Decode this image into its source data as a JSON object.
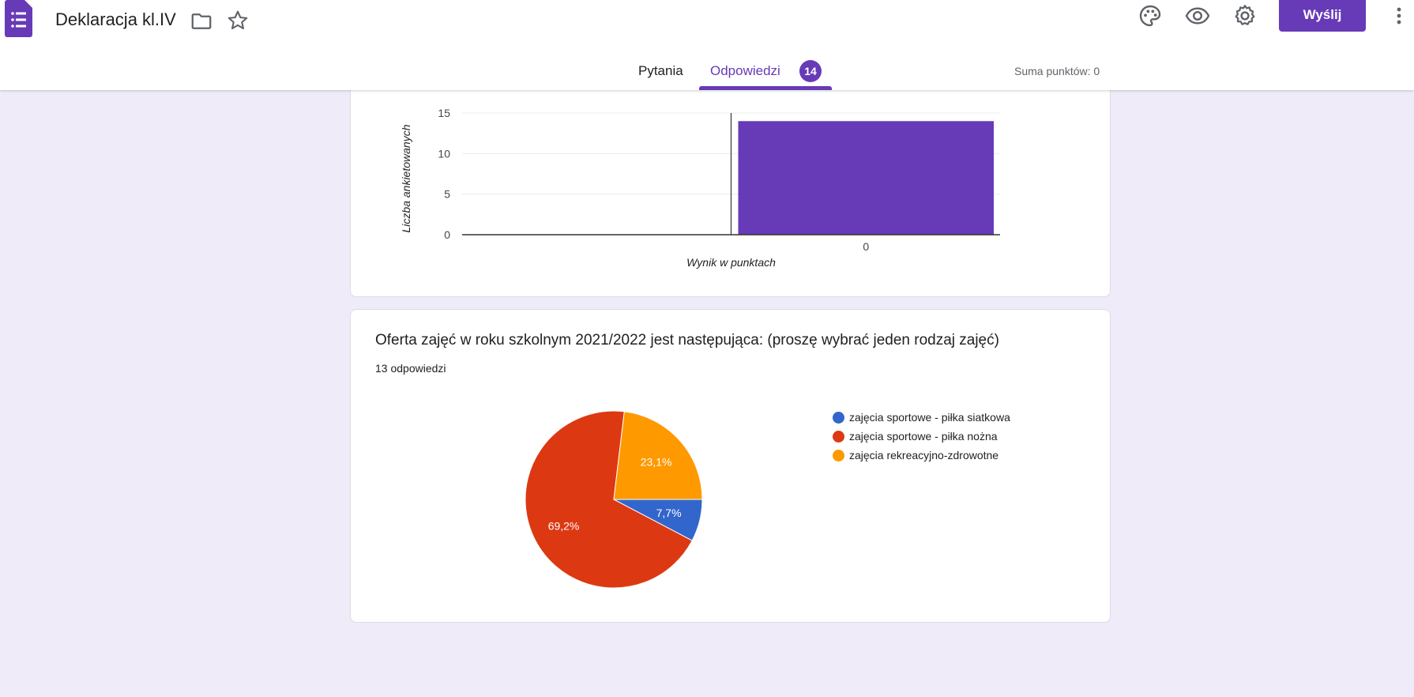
{
  "header": {
    "title": "Deklaracja kl.IV",
    "send_label": "Wyślij",
    "tabs": [
      {
        "label": "Pytania"
      },
      {
        "label": "Odpowiedzi",
        "badge": "14"
      }
    ],
    "points_total": "Suma punktów: 0",
    "icons": [
      "forms-app-icon",
      "folder-icon",
      "star-icon",
      "palette-icon",
      "eye-icon",
      "gear-icon",
      "more-vert-icon"
    ]
  },
  "colors": {
    "accent": "#673ab7",
    "background": "#f0ebf8"
  },
  "cards": [
    {
      "chart_data": {
        "type": "bar",
        "categories": [
          "0"
        ],
        "values": [
          14
        ],
        "xlabel": "Wynik w punktach",
        "ylabel": "Liczba ankietowanych",
        "ylim": [
          0,
          15
        ],
        "yticks": [
          0,
          5,
          10,
          15
        ],
        "color": "#673ab7"
      }
    },
    {
      "title": "Oferta zajęć w roku szkolnym 2021/2022 jest następująca: (proszę wybrać jeden rodzaj zajęć)",
      "count": "13 odpowiedzi",
      "chart_data": {
        "type": "pie",
        "slices": [
          {
            "label": "zajęcia sportowe - piłka siatkowa",
            "value": 7.7,
            "display": "7,7%",
            "color": "#3366cc"
          },
          {
            "label": "zajęcia sportowe - piłka nożna",
            "value": 69.2,
            "display": "69,2%",
            "color": "#dc3912"
          },
          {
            "label": "zajęcia rekreacyjno-zdrowotne",
            "value": 23.1,
            "display": "23,1%",
            "color": "#ff9900"
          }
        ],
        "legend_position": "right"
      }
    }
  ]
}
